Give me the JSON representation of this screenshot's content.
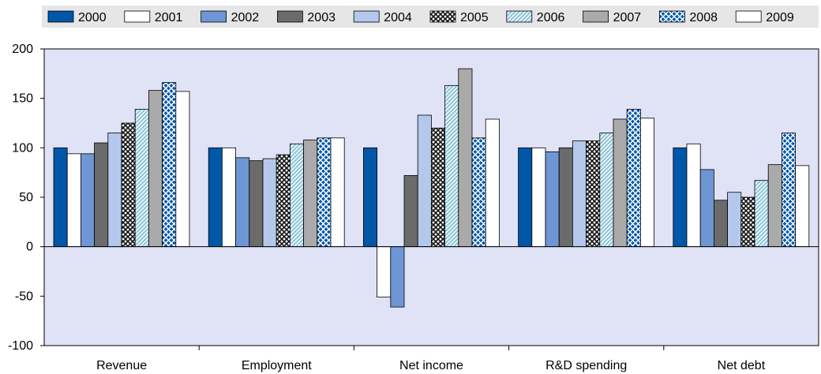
{
  "chart_data": {
    "type": "bar",
    "categories": [
      "Revenue",
      "Employment",
      "Net income",
      "R&D spending",
      "Net debt"
    ],
    "ylim": [
      -100,
      200
    ],
    "yticks": [
      -100,
      -50,
      0,
      50,
      100,
      150,
      200
    ],
    "legend_position": "top",
    "grid": false,
    "series": [
      {
        "name": "2000",
        "fill": "#0057a8",
        "pattern": "solid",
        "values": [
          100,
          100,
          100,
          100,
          100
        ]
      },
      {
        "name": "2001",
        "fill": "#ffffff",
        "pattern": "solid",
        "values": [
          94,
          100,
          -51,
          100,
          104
        ]
      },
      {
        "name": "2002",
        "fill": "#6e96d4",
        "pattern": "solid",
        "values": [
          94,
          90,
          -61,
          96,
          78
        ]
      },
      {
        "name": "2003",
        "fill": "#6b6b6b",
        "pattern": "solid",
        "values": [
          105,
          87,
          72,
          100,
          47
        ]
      },
      {
        "name": "2004",
        "fill": "#b4c8ec",
        "pattern": "solid",
        "values": [
          115,
          89,
          133,
          107,
          55
        ]
      },
      {
        "name": "2005",
        "fill": "#ffffff",
        "pattern": "checker",
        "values": [
          125,
          93,
          120,
          107,
          50
        ]
      },
      {
        "name": "2006",
        "fill": "#8dc5d8",
        "pattern": "hatch",
        "values": [
          139,
          104,
          163,
          115,
          67
        ]
      },
      {
        "name": "2007",
        "fill": "#aaaaaa",
        "pattern": "solid",
        "values": [
          158,
          108,
          180,
          129,
          83
        ]
      },
      {
        "name": "2008",
        "fill": "#0057a8",
        "pattern": "lattice",
        "values": [
          166,
          110,
          110,
          139,
          115
        ]
      },
      {
        "name": "2009",
        "fill": "#ffffff",
        "pattern": "solid",
        "values": [
          157,
          110,
          129,
          130,
          82
        ]
      }
    ]
  }
}
